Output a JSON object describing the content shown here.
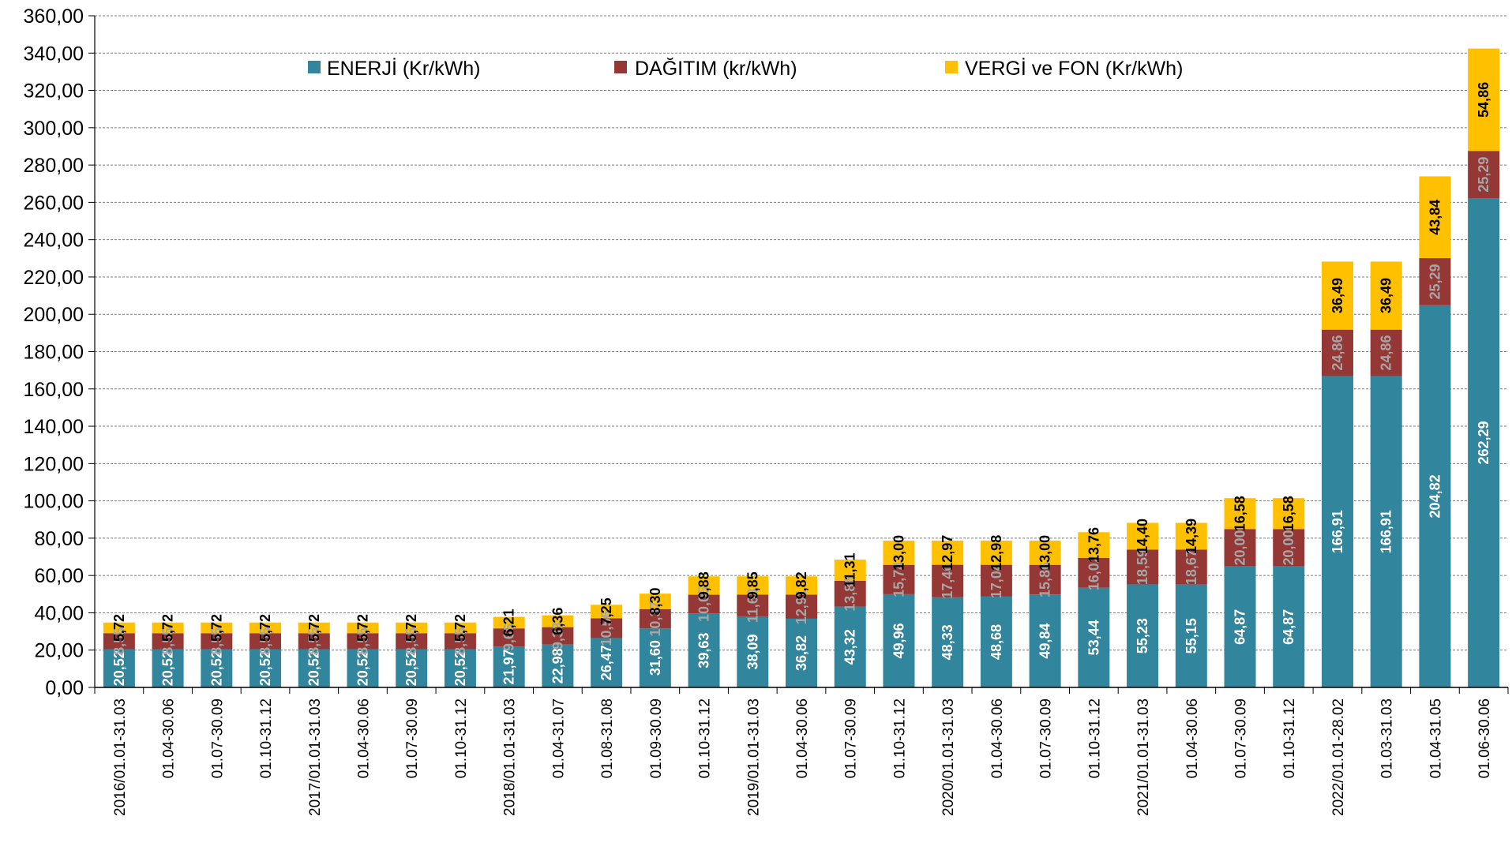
{
  "chart_data": {
    "type": "bar",
    "stacked": true,
    "ylim": [
      0,
      360
    ],
    "ytick_step": 20,
    "ytick_labels": [
      "0,00",
      "20,00",
      "40,00",
      "60,00",
      "80,00",
      "100,00",
      "120,00",
      "140,00",
      "160,00",
      "180,00",
      "200,00",
      "220,00",
      "240,00",
      "260,00",
      "280,00",
      "300,00",
      "320,00",
      "340,00",
      "360,00"
    ],
    "grid": true,
    "legend_position": "top",
    "categories": [
      "2016/01.01-31.03",
      "01.04-30.06",
      "01.07-30.09",
      "01.10-31.12",
      "2017/01.01-31.03",
      "01.04-30.06",
      "01.07-30.09",
      "01.10-31.12",
      "2018/01.01-31.03",
      "01.04-31.07",
      "01.08-31.08",
      "01.09-30.09",
      "01.10-31.12",
      "2019/01.01-31.03",
      "01.04-30.06",
      "01.07-30.09",
      "01.10-31.12",
      "2020/01.01-31.03",
      "01.04-30.06",
      "01.07-30.09",
      "01.10-31.12",
      "2021/01.01-31.03",
      "01.04-30.06",
      "01.07-30.09",
      "01.10-31.12",
      "2022/01.01-28.02",
      "01.03-31.03",
      "01.04-31.05",
      "01.06-30.06"
    ],
    "series": [
      {
        "name": "ENERJİ (Kr/kWh)",
        "color": "#31859C",
        "label_color": "#ffffff",
        "values": [
          20.52,
          20.52,
          20.52,
          20.52,
          20.52,
          20.52,
          20.52,
          20.52,
          21.97,
          22.98,
          26.47,
          31.6,
          39.63,
          38.09,
          36.82,
          43.32,
          49.96,
          48.33,
          48.68,
          49.84,
          53.44,
          55.23,
          55.15,
          64.87,
          64.87,
          166.91,
          166.91,
          204.82,
          262.29
        ],
        "labels": [
          "20,52",
          "20,52",
          "20,52",
          "20,52",
          "20,52",
          "20,52",
          "20,52",
          "20,52",
          "21,97",
          "22,98",
          "26,47",
          "31,60",
          "39,63",
          "38,09",
          "36,82",
          "43,32",
          "49,96",
          "48,33",
          "48,68",
          "49,84",
          "53,44",
          "55,23",
          "55,15",
          "64,87",
          "64,87",
          "166,91",
          "166,91",
          "204,82",
          "262,29"
        ]
      },
      {
        "name": "DAĞITIM (kr/kWh)",
        "color": "#953735",
        "label_color": "#A6A6A6",
        "values": [
          8.55,
          8.55,
          8.55,
          8.55,
          8.55,
          8.55,
          8.55,
          8.55,
          9.66,
          9.33,
          10.56,
          10.37,
          10.05,
          11.63,
          12.91,
          13.86,
          15.74,
          17.4,
          17.04,
          15.86,
          16.02,
          18.59,
          18.67,
          20.0,
          20.0,
          24.86,
          24.86,
          25.29,
          25.29
        ],
        "labels": [
          "8,55",
          "8,55",
          "8,55",
          "8,55",
          "8,55",
          "8,55",
          "8,55",
          "8,55",
          "9,66",
          "9,33",
          "10,56",
          "10,37",
          "10,05",
          "11,63",
          "12,91",
          "13,86",
          "15,74",
          "17,40",
          "17,04",
          "15,86",
          "16,02",
          "18,59",
          "18,67",
          "20,00",
          "20,00",
          "24,86",
          "24,86",
          "25,29",
          "25,29"
        ]
      },
      {
        "name": "VERGİ ve FON (Kr/kWh)",
        "color": "#FFC000",
        "label_color": "#000000",
        "values": [
          5.72,
          5.72,
          5.72,
          5.72,
          5.72,
          5.72,
          5.72,
          5.72,
          6.21,
          6.36,
          7.25,
          8.3,
          9.88,
          9.85,
          9.82,
          11.31,
          13.0,
          12.97,
          12.98,
          13.0,
          13.76,
          14.4,
          14.39,
          16.58,
          16.58,
          36.49,
          36.49,
          43.84,
          54.86
        ],
        "labels": [
          "5,72",
          "5,72",
          "5,72",
          "5,72",
          "5,72",
          "5,72",
          "5,72",
          "5,72",
          "6,21",
          "6,36",
          "7,25",
          "8,30",
          "9,88",
          "9,85",
          "9,82",
          "11,31",
          "13,00",
          "12,97",
          "12,98",
          "13,00",
          "13,76",
          "14,40",
          "14,39",
          "16,58",
          "16,58",
          "36,49",
          "36,49",
          "43,84",
          "54,86"
        ]
      }
    ]
  }
}
